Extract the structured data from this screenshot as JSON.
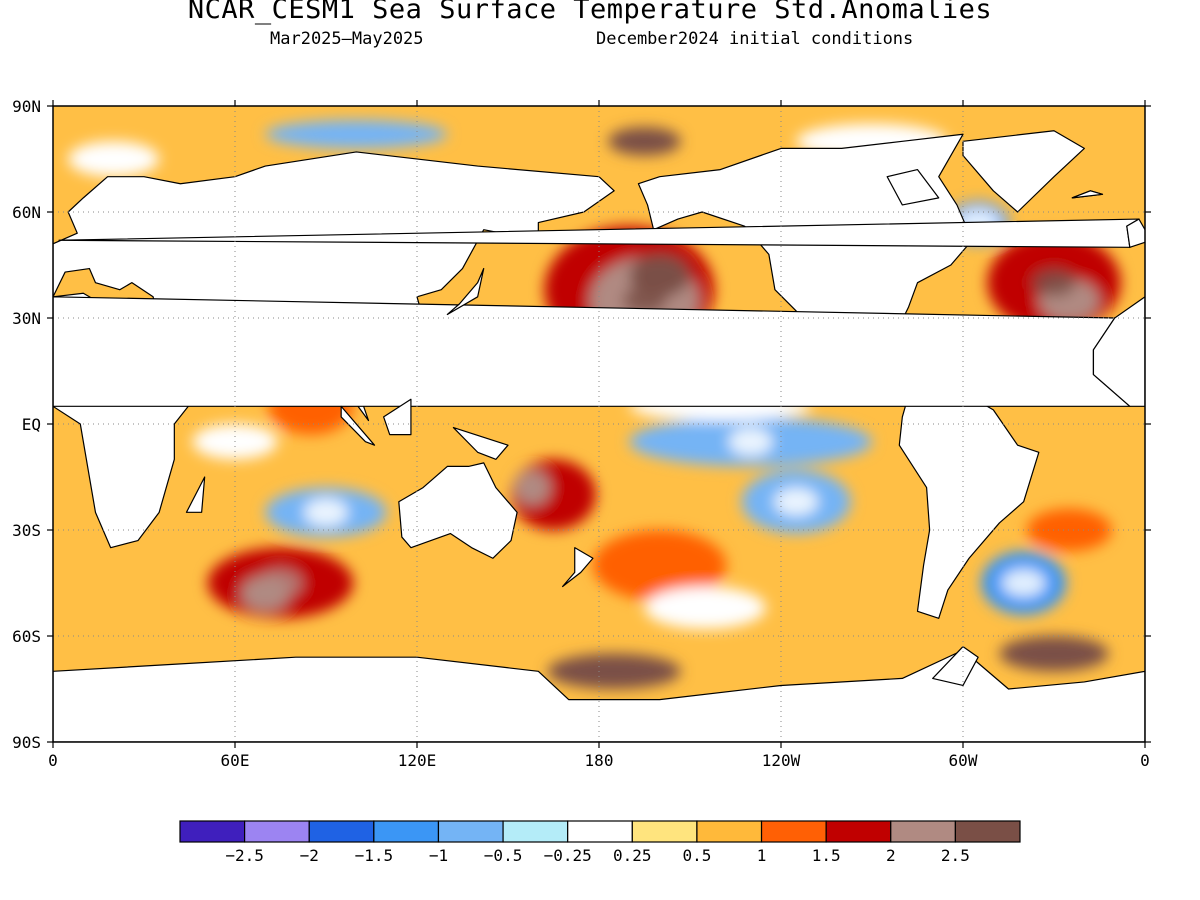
{
  "title": "NCAR_CESM1 Sea Surface Temperature Std.Anomalies",
  "subtitle_left": "Mar2025–May2025",
  "subtitle_right": "December2024 initial conditions",
  "map": {
    "projection": "equirectangular",
    "lon_range": [
      0,
      360
    ],
    "lat_range": [
      -90,
      90
    ],
    "lat_ticks": [
      {
        "lat": 90,
        "label": "90N"
      },
      {
        "lat": 60,
        "label": "60N"
      },
      {
        "lat": 30,
        "label": "30N"
      },
      {
        "lat": 0,
        "label": "EQ"
      },
      {
        "lat": -30,
        "label": "30S"
      },
      {
        "lat": -60,
        "label": "60S"
      },
      {
        "lat": -90,
        "label": "90S"
      }
    ],
    "lon_ticks": [
      {
        "lon": 0,
        "label": "0"
      },
      {
        "lon": 60,
        "label": "60E"
      },
      {
        "lon": 120,
        "label": "120E"
      },
      {
        "lon": 180,
        "label": "180"
      },
      {
        "lon": 240,
        "label": "120W"
      },
      {
        "lon": 300,
        "label": "60W"
      },
      {
        "lon": 360,
        "label": "0"
      }
    ],
    "grid": "dotted",
    "land_color": "#ffffff",
    "coast_color": "#000000"
  },
  "colorbar": {
    "colors": [
      "#3f1fbd",
      "#9c84f2",
      "#1f62e4",
      "#3b96f5",
      "#74b4f5",
      "#b4ecf8",
      "#ffffff",
      "#ffe47e",
      "#ffb93a",
      "#ff6005",
      "#c00000",
      "#b08a82",
      "#7a4f46"
    ],
    "labels": [
      "−2.5",
      "−2",
      "−1.5",
      "−1",
      "−0.5",
      "−0.25",
      "0.25",
      "0.5",
      "1",
      "1.5",
      "2",
      "2.5"
    ]
  },
  "anomaly_regions": [
    {
      "name": "Central North Pacific",
      "lon": 195,
      "lat": 35,
      "level": "2.5"
    },
    {
      "name": "Western Pacific warm pool",
      "lon": 155,
      "lat": 18,
      "level": "2"
    },
    {
      "name": "Equatorial East Pacific",
      "lon": 230,
      "lat": -5,
      "level": "-1"
    },
    {
      "name": "Southeast Pacific",
      "lon": 245,
      "lat": -22,
      "level": "-1"
    },
    {
      "name": "North Atlantic",
      "lon": 330,
      "lat": 40,
      "level": "2.5"
    },
    {
      "name": "Labrador Sea",
      "lon": 305,
      "lat": 57,
      "level": "-1.5"
    },
    {
      "name": "South Atlantic",
      "lon": 320,
      "lat": -45,
      "level": "-1.5"
    },
    {
      "name": "Weddell Sea",
      "lon": 330,
      "lat": -65,
      "level": "2.5"
    },
    {
      "name": "Ross Sea",
      "lon": 185,
      "lat": -70,
      "level": "2.5"
    },
    {
      "name": "Southern Indian Ocean",
      "lon": 75,
      "lat": -45,
      "level": "2"
    },
    {
      "name": "Southeast Indian Ocean",
      "lon": 90,
      "lat": -25,
      "level": "-1.5"
    },
    {
      "name": "Chukchi Sea",
      "lon": 195,
      "lat": 80,
      "level": "2.5"
    }
  ]
}
